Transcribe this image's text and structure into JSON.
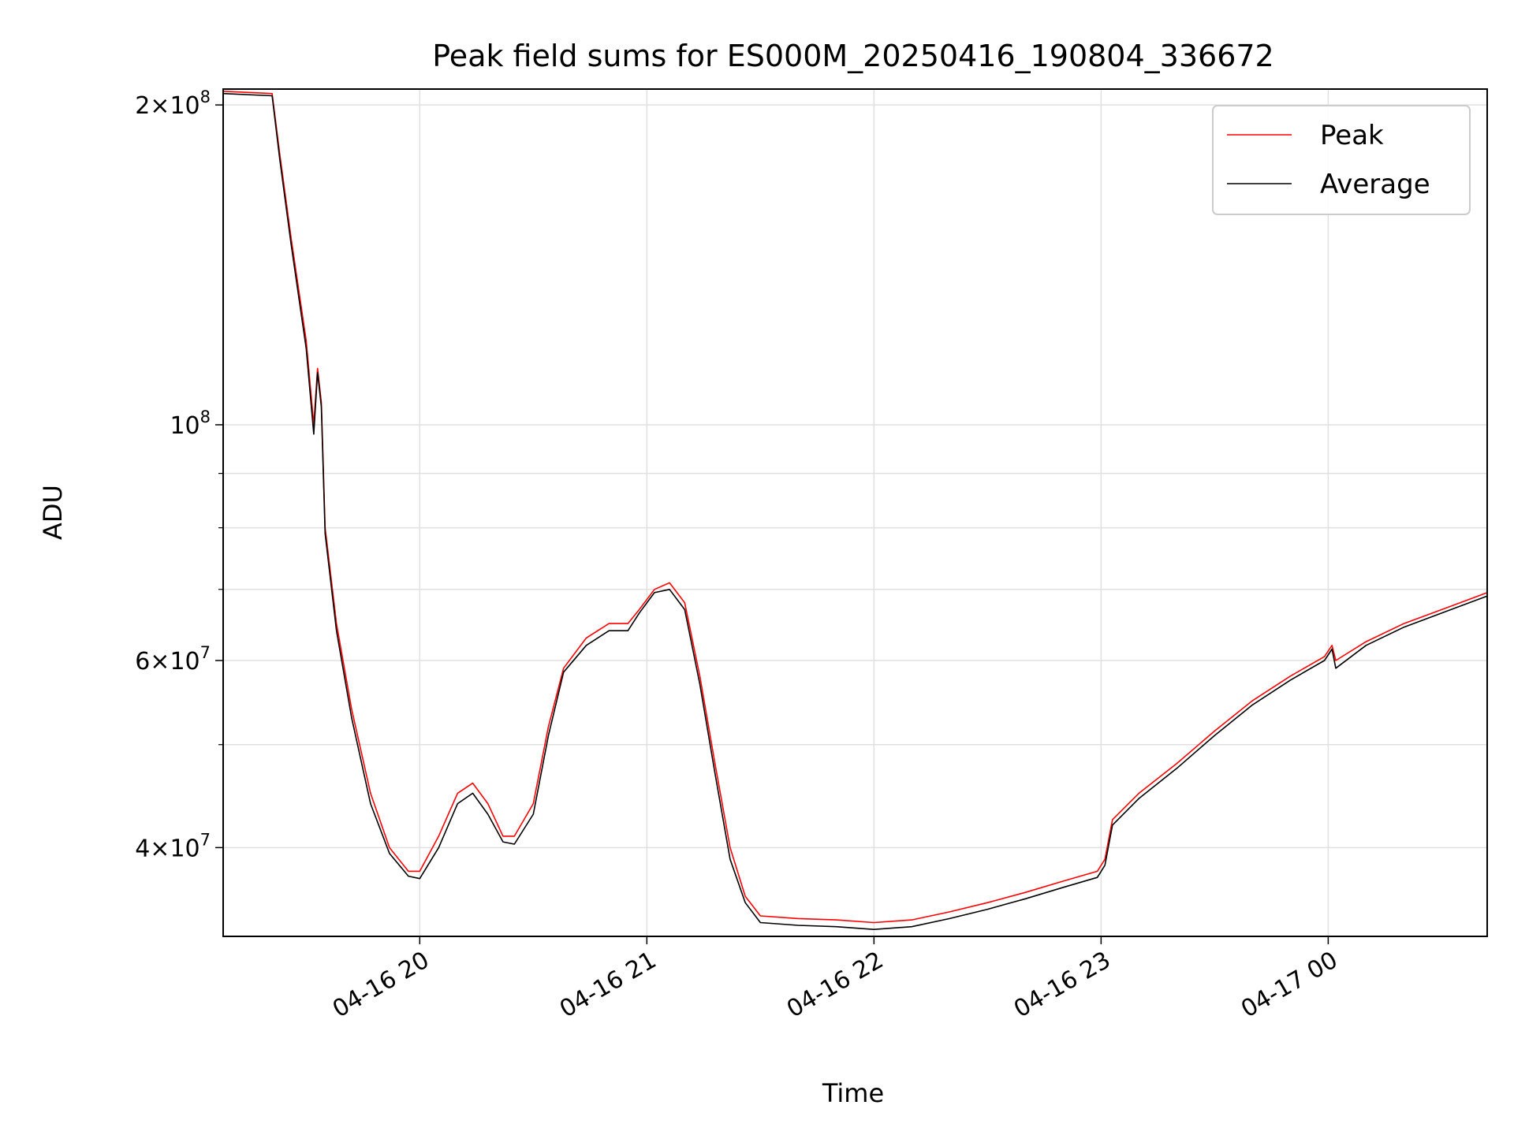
{
  "chart_data": {
    "type": "line",
    "title": "Peak field sums for ES000M_20250416_190804_336672",
    "xlabel": "Time",
    "ylabel": "ADU",
    "y_scale": "log",
    "grid": true,
    "legend_position": "top-right",
    "xlim": [
      "2025-04-16T19:08:04",
      "2025-04-17T00:42:00"
    ],
    "ylim": [
      33000000,
      207000000
    ],
    "x_ticks": [
      {
        "value": "2025-04-16T20:00:00",
        "label": "04-16 20"
      },
      {
        "value": "2025-04-16T21:00:00",
        "label": "04-16 21"
      },
      {
        "value": "2025-04-16T22:00:00",
        "label": "04-16 22"
      },
      {
        "value": "2025-04-16T23:00:00",
        "label": "04-16 23"
      },
      {
        "value": "2025-04-17T00:00:00",
        "label": "04-17 00"
      }
    ],
    "y_major_ticks": [
      {
        "value": 40000000,
        "mant": "4",
        "exp": "7"
      },
      {
        "value": 60000000,
        "mant": "6",
        "exp": "7"
      },
      {
        "value": 100000000,
        "mant": "",
        "exp": "8"
      },
      {
        "value": 200000000,
        "mant": "2",
        "exp": "8"
      }
    ],
    "y_minor_ticks": [
      50000000,
      70000000,
      80000000,
      90000000
    ],
    "series": [
      {
        "name": "Peak",
        "color": "#ff0000",
        "points": [
          [
            "2025-04-16T19:08:04",
            206000000
          ],
          [
            "2025-04-16T19:21:00",
            205000000
          ],
          [
            "2025-04-16T19:23:00",
            180000000
          ],
          [
            "2025-04-16T19:26:00",
            150000000
          ],
          [
            "2025-04-16T19:30:00",
            120000000
          ],
          [
            "2025-04-16T19:32:00",
            100000000
          ],
          [
            "2025-04-16T19:33:00",
            113000000
          ],
          [
            "2025-04-16T19:34:00",
            105000000
          ],
          [
            "2025-04-16T19:35:00",
            80000000
          ],
          [
            "2025-04-16T19:38:00",
            65000000
          ],
          [
            "2025-04-16T19:42:00",
            54000000
          ],
          [
            "2025-04-16T19:47:00",
            45000000
          ],
          [
            "2025-04-16T19:52:00",
            40000000
          ],
          [
            "2025-04-16T19:57:00",
            38000000
          ],
          [
            "2025-04-16T20:00:00",
            38000000
          ],
          [
            "2025-04-16T20:05:00",
            41000000
          ],
          [
            "2025-04-16T20:10:00",
            45000000
          ],
          [
            "2025-04-16T20:14:00",
            46000000
          ],
          [
            "2025-04-16T20:18:00",
            44000000
          ],
          [
            "2025-04-16T20:22:00",
            41000000
          ],
          [
            "2025-04-16T20:25:00",
            41000000
          ],
          [
            "2025-04-16T20:30:00",
            44000000
          ],
          [
            "2025-04-16T20:34:00",
            52000000
          ],
          [
            "2025-04-16T20:38:00",
            59000000
          ],
          [
            "2025-04-16T20:44:00",
            63000000
          ],
          [
            "2025-04-16T20:50:00",
            65000000
          ],
          [
            "2025-04-16T20:55:00",
            65000000
          ],
          [
            "2025-04-16T20:58:00",
            67000000
          ],
          [
            "2025-04-16T21:02:00",
            70000000
          ],
          [
            "2025-04-16T21:06:00",
            71000000
          ],
          [
            "2025-04-16T21:10:00",
            68000000
          ],
          [
            "2025-04-16T21:14:00",
            58000000
          ],
          [
            "2025-04-16T21:18:00",
            48000000
          ],
          [
            "2025-04-16T21:22:00",
            40000000
          ],
          [
            "2025-04-16T21:26:00",
            36000000
          ],
          [
            "2025-04-16T21:30:00",
            34500000
          ],
          [
            "2025-04-16T21:40:00",
            34300000
          ],
          [
            "2025-04-16T21:50:00",
            34200000
          ],
          [
            "2025-04-16T22:00:00",
            34000000
          ],
          [
            "2025-04-16T22:10:00",
            34200000
          ],
          [
            "2025-04-16T22:20:00",
            34800000
          ],
          [
            "2025-04-16T22:30:00",
            35500000
          ],
          [
            "2025-04-16T22:40:00",
            36300000
          ],
          [
            "2025-04-16T22:50:00",
            37200000
          ],
          [
            "2025-04-16T22:59:00",
            38000000
          ],
          [
            "2025-04-16T23:01:00",
            39000000
          ],
          [
            "2025-04-16T23:03:00",
            42500000
          ],
          [
            "2025-04-16T23:10:00",
            45000000
          ],
          [
            "2025-04-16T23:20:00",
            48000000
          ],
          [
            "2025-04-16T23:30:00",
            51500000
          ],
          [
            "2025-04-16T23:40:00",
            55000000
          ],
          [
            "2025-04-16T23:50:00",
            58000000
          ],
          [
            "2025-04-16T23:59:00",
            60500000
          ],
          [
            "2025-04-17T00:01:00",
            62000000
          ],
          [
            "2025-04-17T00:02:00",
            60000000
          ],
          [
            "2025-04-17T00:10:00",
            62500000
          ],
          [
            "2025-04-17T00:20:00",
            65000000
          ],
          [
            "2025-04-17T00:30:00",
            67000000
          ],
          [
            "2025-04-17T00:42:00",
            69500000
          ]
        ]
      },
      {
        "name": "Average",
        "color": "#000000",
        "points": [
          [
            "2025-04-16T19:08:04",
            205000000
          ],
          [
            "2025-04-16T19:21:00",
            204000000
          ],
          [
            "2025-04-16T19:23:00",
            178000000
          ],
          [
            "2025-04-16T19:26:00",
            148000000
          ],
          [
            "2025-04-16T19:30:00",
            118000000
          ],
          [
            "2025-04-16T19:32:00",
            98000000
          ],
          [
            "2025-04-16T19:33:00",
            112000000
          ],
          [
            "2025-04-16T19:34:00",
            104000000
          ],
          [
            "2025-04-16T19:35:00",
            79000000
          ],
          [
            "2025-04-16T19:38:00",
            64000000
          ],
          [
            "2025-04-16T19:42:00",
            53000000
          ],
          [
            "2025-04-16T19:47:00",
            44000000
          ],
          [
            "2025-04-16T19:52:00",
            39500000
          ],
          [
            "2025-04-16T19:57:00",
            37600000
          ],
          [
            "2025-04-16T20:00:00",
            37400000
          ],
          [
            "2025-04-16T20:05:00",
            40000000
          ],
          [
            "2025-04-16T20:10:00",
            44000000
          ],
          [
            "2025-04-16T20:14:00",
            45000000
          ],
          [
            "2025-04-16T20:18:00",
            43000000
          ],
          [
            "2025-04-16T20:22:00",
            40500000
          ],
          [
            "2025-04-16T20:25:00",
            40300000
          ],
          [
            "2025-04-16T20:30:00",
            43000000
          ],
          [
            "2025-04-16T20:34:00",
            51000000
          ],
          [
            "2025-04-16T20:38:00",
            58500000
          ],
          [
            "2025-04-16T20:44:00",
            62000000
          ],
          [
            "2025-04-16T20:50:00",
            64000000
          ],
          [
            "2025-04-16T20:55:00",
            64000000
          ],
          [
            "2025-04-16T20:58:00",
            66500000
          ],
          [
            "2025-04-16T21:02:00",
            69500000
          ],
          [
            "2025-04-16T21:06:00",
            70000000
          ],
          [
            "2025-04-16T21:10:00",
            67000000
          ],
          [
            "2025-04-16T21:14:00",
            57000000
          ],
          [
            "2025-04-16T21:18:00",
            47000000
          ],
          [
            "2025-04-16T21:22:00",
            39000000
          ],
          [
            "2025-04-16T21:26:00",
            35500000
          ],
          [
            "2025-04-16T21:30:00",
            34000000
          ],
          [
            "2025-04-16T21:40:00",
            33800000
          ],
          [
            "2025-04-16T21:50:00",
            33700000
          ],
          [
            "2025-04-16T22:00:00",
            33500000
          ],
          [
            "2025-04-16T22:10:00",
            33700000
          ],
          [
            "2025-04-16T22:20:00",
            34300000
          ],
          [
            "2025-04-16T22:30:00",
            35000000
          ],
          [
            "2025-04-16T22:40:00",
            35800000
          ],
          [
            "2025-04-16T22:50:00",
            36700000
          ],
          [
            "2025-04-16T22:59:00",
            37500000
          ],
          [
            "2025-04-16T23:01:00",
            38500000
          ],
          [
            "2025-04-16T23:03:00",
            42000000
          ],
          [
            "2025-04-16T23:10:00",
            44500000
          ],
          [
            "2025-04-16T23:20:00",
            47500000
          ],
          [
            "2025-04-16T23:30:00",
            51000000
          ],
          [
            "2025-04-16T23:40:00",
            54500000
          ],
          [
            "2025-04-16T23:50:00",
            57500000
          ],
          [
            "2025-04-16T23:59:00",
            60000000
          ],
          [
            "2025-04-17T00:01:00",
            61500000
          ],
          [
            "2025-04-17T00:02:00",
            59000000
          ],
          [
            "2025-04-17T00:10:00",
            62000000
          ],
          [
            "2025-04-17T00:20:00",
            64500000
          ],
          [
            "2025-04-17T00:30:00",
            66500000
          ],
          [
            "2025-04-17T00:42:00",
            69000000
          ]
        ]
      }
    ]
  }
}
